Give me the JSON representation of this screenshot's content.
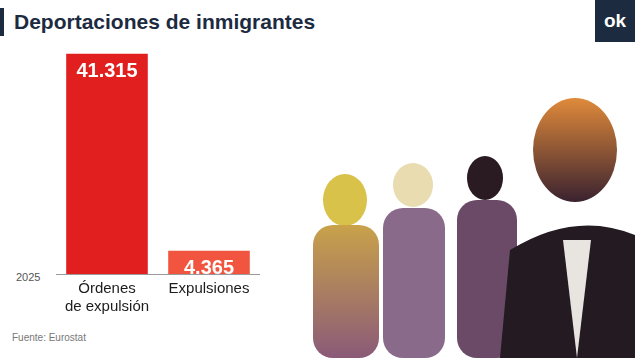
{
  "chart_data": {
    "type": "bar",
    "title": "Deportaciones de inmigrantes",
    "categories": [
      "Órdenes de expulsión",
      "Expulsiones"
    ],
    "values": [
      41315,
      4365
    ],
    "value_labels": [
      "41.315",
      "4.365"
    ],
    "colors": [
      "#e21f1f",
      "#f2553f"
    ],
    "ylim": [
      0,
      42000
    ],
    "yticks": [
      0,
      42000
    ],
    "grid": false,
    "data_labels": true,
    "tick_labels": "x",
    "annotation": "2025",
    "source": "Fuente: Eurostat",
    "logo": "ok"
  }
}
